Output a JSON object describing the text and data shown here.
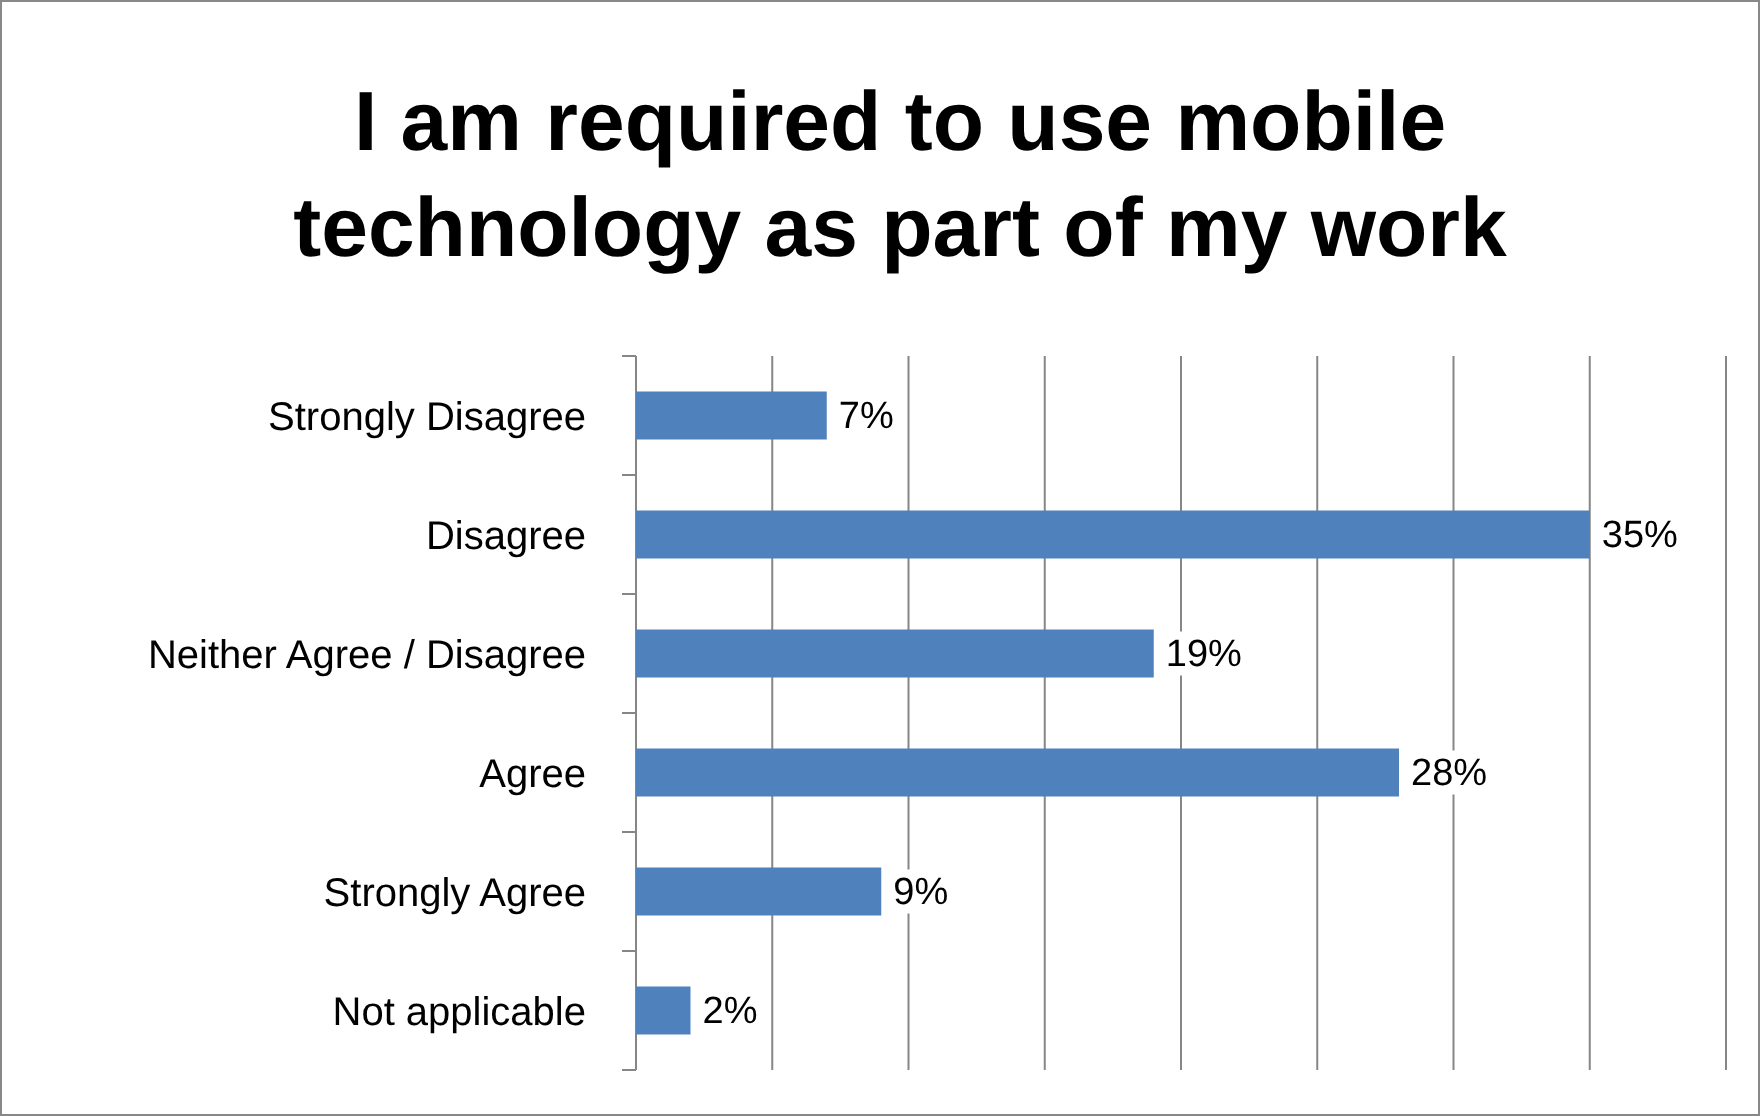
{
  "chart_data": {
    "type": "bar",
    "orientation": "horizontal",
    "title": "I am required to use mobile technology as part of my work",
    "categories": [
      "Strongly Disagree",
      "Disagree",
      "Neither Agree / Disagree",
      "Agree",
      "Strongly Agree",
      "Not applicable"
    ],
    "values": [
      7,
      35,
      19,
      28,
      9,
      2
    ],
    "color": "#4f81bd",
    "data_labels": true,
    "value_labels": [
      "7%",
      "35%",
      "19%",
      "28%",
      "9%",
      "2%"
    ],
    "xlim": [
      0,
      40
    ],
    "xticks": [
      {
        "value": 0,
        "label": null
      },
      {
        "value": 5,
        "label": null
      },
      {
        "value": 10,
        "label": null
      },
      {
        "value": 15,
        "label": null
      },
      {
        "value": 20,
        "label": null
      },
      {
        "value": 25,
        "label": null
      },
      {
        "value": 30,
        "label": null
      },
      {
        "value": 35,
        "label": null
      },
      {
        "value": 40,
        "label": null
      }
    ],
    "tick_labels": "y",
    "grid": "x"
  }
}
